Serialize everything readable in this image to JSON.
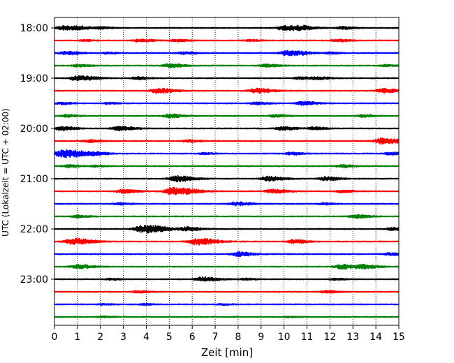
{
  "chart_data": {
    "type": "line",
    "title": "",
    "xlabel": "Zeit  [min]",
    "ylabel": "UTC (Lokalzeit = UTC + 02:00)",
    "xlim": [
      0,
      15
    ],
    "x_ticks": [
      "0",
      "1",
      "2",
      "3",
      "4",
      "5",
      "6",
      "7",
      "8",
      "9",
      "10",
      "11",
      "12",
      "13",
      "14",
      "15"
    ],
    "y_tick_labels": [
      "18:00",
      "19:00",
      "20:00",
      "21:00",
      "22:00",
      "23:00"
    ],
    "y_tick_rows": [
      0,
      4,
      8,
      12,
      16,
      20
    ],
    "grid": "vertical dotted lines at each minute",
    "line_colors": [
      "#000000",
      "#ff0000",
      "#0000ff",
      "#008000"
    ],
    "traces": [
      {
        "start": "18:00",
        "bursts": [
          [
            0.4,
            0.5
          ],
          [
            1.1,
            0.3
          ],
          [
            2.0,
            0.25
          ],
          [
            10.0,
            0.55
          ],
          [
            10.7,
            0.45
          ],
          [
            12.5,
            0.3
          ]
        ]
      },
      {
        "start": "18:15",
        "bursts": [
          [
            1.3,
            0.2
          ],
          [
            3.7,
            0.35
          ],
          [
            5.3,
            0.3
          ],
          [
            8.5,
            0.2
          ],
          [
            12.3,
            0.3
          ]
        ]
      },
      {
        "start": "18:30",
        "bursts": [
          [
            0.5,
            0.4
          ],
          [
            2.3,
            0.2
          ],
          [
            5.6,
            0.3
          ],
          [
            10.2,
            0.7
          ],
          [
            12.0,
            0.2
          ]
        ]
      },
      {
        "start": "18:45",
        "bursts": [
          [
            1.0,
            0.3
          ],
          [
            5.0,
            0.45
          ],
          [
            9.2,
            0.35
          ],
          [
            14.4,
            0.2
          ]
        ]
      },
      {
        "start": "19:00",
        "bursts": [
          [
            1.0,
            0.65
          ],
          [
            3.6,
            0.3
          ],
          [
            10.7,
            0.3
          ],
          [
            11.5,
            0.3
          ]
        ]
      },
      {
        "start": "19:15",
        "bursts": [
          [
            4.5,
            0.6
          ],
          [
            8.8,
            0.55
          ],
          [
            14.3,
            0.5
          ]
        ]
      },
      {
        "start": "19:30",
        "bursts": [
          [
            0.3,
            0.25
          ],
          [
            2.3,
            0.2
          ],
          [
            8.8,
            0.3
          ],
          [
            10.8,
            0.45
          ]
        ]
      },
      {
        "start": "19:45",
        "bursts": [
          [
            0.5,
            0.3
          ],
          [
            5.0,
            0.45
          ],
          [
            9.6,
            0.3
          ],
          [
            13.4,
            0.3
          ]
        ]
      },
      {
        "start": "20:00",
        "bursts": [
          [
            0.3,
            0.45
          ],
          [
            2.8,
            0.5
          ],
          [
            9.9,
            0.45
          ],
          [
            11.3,
            0.3
          ]
        ]
      },
      {
        "start": "20:15",
        "bursts": [
          [
            1.5,
            0.3
          ],
          [
            5.8,
            0.3
          ],
          [
            14.3,
            0.75
          ]
        ]
      },
      {
        "start": "20:30",
        "bursts": [
          [
            0.4,
            1.0
          ],
          [
            1.8,
            0.3
          ],
          [
            6.5,
            0.2
          ],
          [
            10.3,
            0.3
          ],
          [
            14.6,
            0.3
          ]
        ]
      },
      {
        "start": "20:45",
        "bursts": [
          [
            0.6,
            0.3
          ],
          [
            1.8,
            0.2
          ],
          [
            12.5,
            0.35
          ]
        ]
      },
      {
        "start": "21:00",
        "bursts": [
          [
            5.3,
            0.7
          ],
          [
            9.3,
            0.55
          ],
          [
            11.8,
            0.45
          ]
        ]
      },
      {
        "start": "21:15",
        "bursts": [
          [
            3.0,
            0.45
          ],
          [
            5.2,
            0.95
          ],
          [
            9.5,
            0.5
          ],
          [
            12.5,
            0.3
          ]
        ]
      },
      {
        "start": "21:30",
        "bursts": [
          [
            2.8,
            0.25
          ],
          [
            7.9,
            0.45
          ],
          [
            11.7,
            0.2
          ]
        ]
      },
      {
        "start": "21:45",
        "bursts": [
          [
            1.0,
            0.3
          ],
          [
            13.1,
            0.45
          ]
        ]
      },
      {
        "start": "22:00",
        "bursts": [
          [
            3.9,
            1.0
          ],
          [
            5.8,
            0.45
          ],
          [
            14.7,
            0.35
          ]
        ]
      },
      {
        "start": "22:15",
        "bursts": [
          [
            0.8,
            0.75
          ],
          [
            6.2,
            0.8
          ],
          [
            10.4,
            0.45
          ]
        ]
      },
      {
        "start": "22:30",
        "bursts": [
          [
            8.0,
            0.5
          ],
          [
            14.6,
            0.3
          ]
        ]
      },
      {
        "start": "22:45",
        "bursts": [
          [
            1.0,
            0.5
          ],
          [
            12.5,
            0.55
          ],
          [
            13.5,
            0.4
          ]
        ]
      },
      {
        "start": "23:00",
        "bursts": [
          [
            2.4,
            0.2
          ],
          [
            6.4,
            0.55
          ],
          [
            8.3,
            0.2
          ],
          [
            12.2,
            0.2
          ]
        ]
      },
      {
        "start": "23:15",
        "bursts": [
          [
            3.6,
            0.25
          ],
          [
            11.8,
            0.3
          ]
        ]
      },
      {
        "start": "23:30",
        "bursts": [
          [
            2.1,
            0.15
          ],
          [
            3.9,
            0.15
          ],
          [
            7.3,
            0.15
          ]
        ]
      },
      {
        "start": "23:45",
        "bursts": [
          [
            2.1,
            0.15
          ],
          [
            10.2,
            0.1
          ]
        ]
      }
    ]
  }
}
